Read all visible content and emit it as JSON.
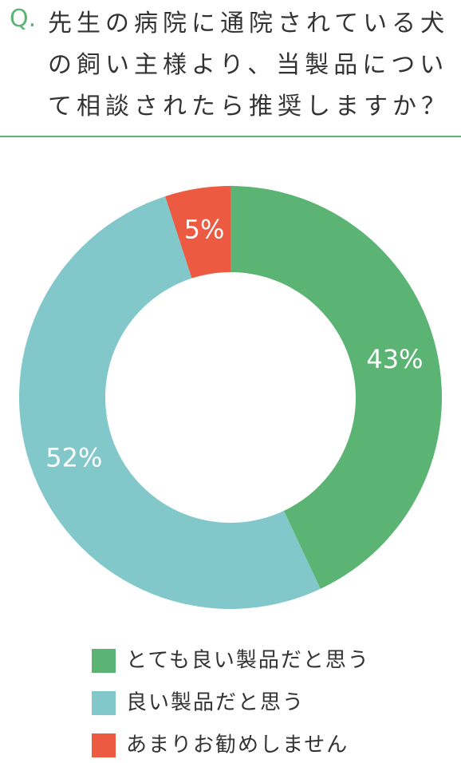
{
  "chart_data": {
    "type": "donut",
    "prefix": "Q.",
    "title": "先生の病院に通院されている犬の飼い主様より、当製品について相談されたら推奨しますか？",
    "categories": [
      "とても良い製品だと思う",
      "良い製品だと思う",
      "あまりお勧めしません"
    ],
    "values": [
      43,
      52,
      5
    ],
    "value_labels": [
      "43%",
      "52%",
      "5%"
    ],
    "colors": [
      "#5bb474",
      "#82c8cb",
      "#ec5a42"
    ]
  }
}
